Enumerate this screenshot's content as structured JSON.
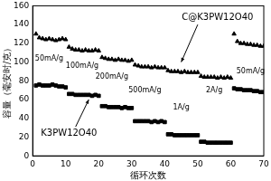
{
  "chart_data": {
    "type": "scatter",
    "xlabel": "循环次数",
    "ylabel": "容量（毫安时/克）",
    "x": [
      1,
      2,
      3,
      4,
      5,
      6,
      7,
      8,
      9,
      10,
      11,
      12,
      13,
      14,
      15,
      16,
      17,
      18,
      19,
      20,
      21,
      22,
      23,
      24,
      25,
      26,
      27,
      28,
      29,
      30,
      31,
      32,
      33,
      34,
      35,
      36,
      37,
      38,
      39,
      40,
      41,
      42,
      43,
      44,
      45,
      46,
      47,
      48,
      49,
      50,
      51,
      52,
      53,
      54,
      55,
      56,
      57,
      58,
      59,
      60,
      61,
      62,
      63,
      64,
      65,
      66,
      67,
      68,
      69,
      70
    ],
    "series": [
      {
        "name": "C@K3PW12O40",
        "color": "#000000",
        "marker": "triangle",
        "values": [
          130,
          126,
          125,
          124,
          125,
          124,
          123,
          124,
          125,
          124,
          116,
          114,
          113,
          113,
          112,
          113,
          112,
          112,
          113,
          112,
          105,
          104,
          103,
          103,
          102,
          103,
          102,
          102,
          101,
          102,
          97,
          96,
          95,
          95,
          95,
          94,
          95,
          94,
          94,
          94,
          91,
          90,
          90,
          90,
          89,
          90,
          89,
          89,
          89,
          89,
          85,
          84,
          84,
          84,
          84,
          83,
          84,
          83,
          84,
          83,
          130,
          122,
          120,
          120,
          119,
          119,
          118,
          118,
          117,
          117
        ]
      },
      {
        "name": "K3PW12O40",
        "color": "#000000",
        "marker": "square",
        "values": [
          75,
          76,
          75,
          75,
          75,
          76,
          75,
          74,
          74,
          73,
          66,
          66,
          65,
          65,
          65,
          65,
          65,
          64,
          65,
          64,
          53,
          53,
          52,
          52,
          52,
          52,
          51,
          52,
          51,
          51,
          37,
          37,
          37,
          37,
          37,
          36,
          37,
          36,
          37,
          36,
          23,
          23,
          22,
          22,
          22,
          22,
          22,
          22,
          22,
          22,
          15,
          15,
          14,
          14,
          14,
          14,
          14,
          14,
          14,
          14,
          72,
          71,
          71,
          70,
          70,
          70,
          69,
          69,
          68,
          68
        ]
      }
    ],
    "annotations": [
      "50mA/g",
      "100mA/g",
      "200mA/g",
      "500mA/g",
      "1A/g",
      "2A/g",
      "50mA/g"
    ],
    "xlim": [
      0,
      70
    ],
    "xticks": [
      0,
      10,
      20,
      30,
      40,
      50,
      60,
      70
    ],
    "ylim": [
      0,
      160
    ],
    "yticks": [
      0,
      20,
      40,
      60,
      80,
      100,
      120,
      140,
      160
    ],
    "grid": false
  }
}
